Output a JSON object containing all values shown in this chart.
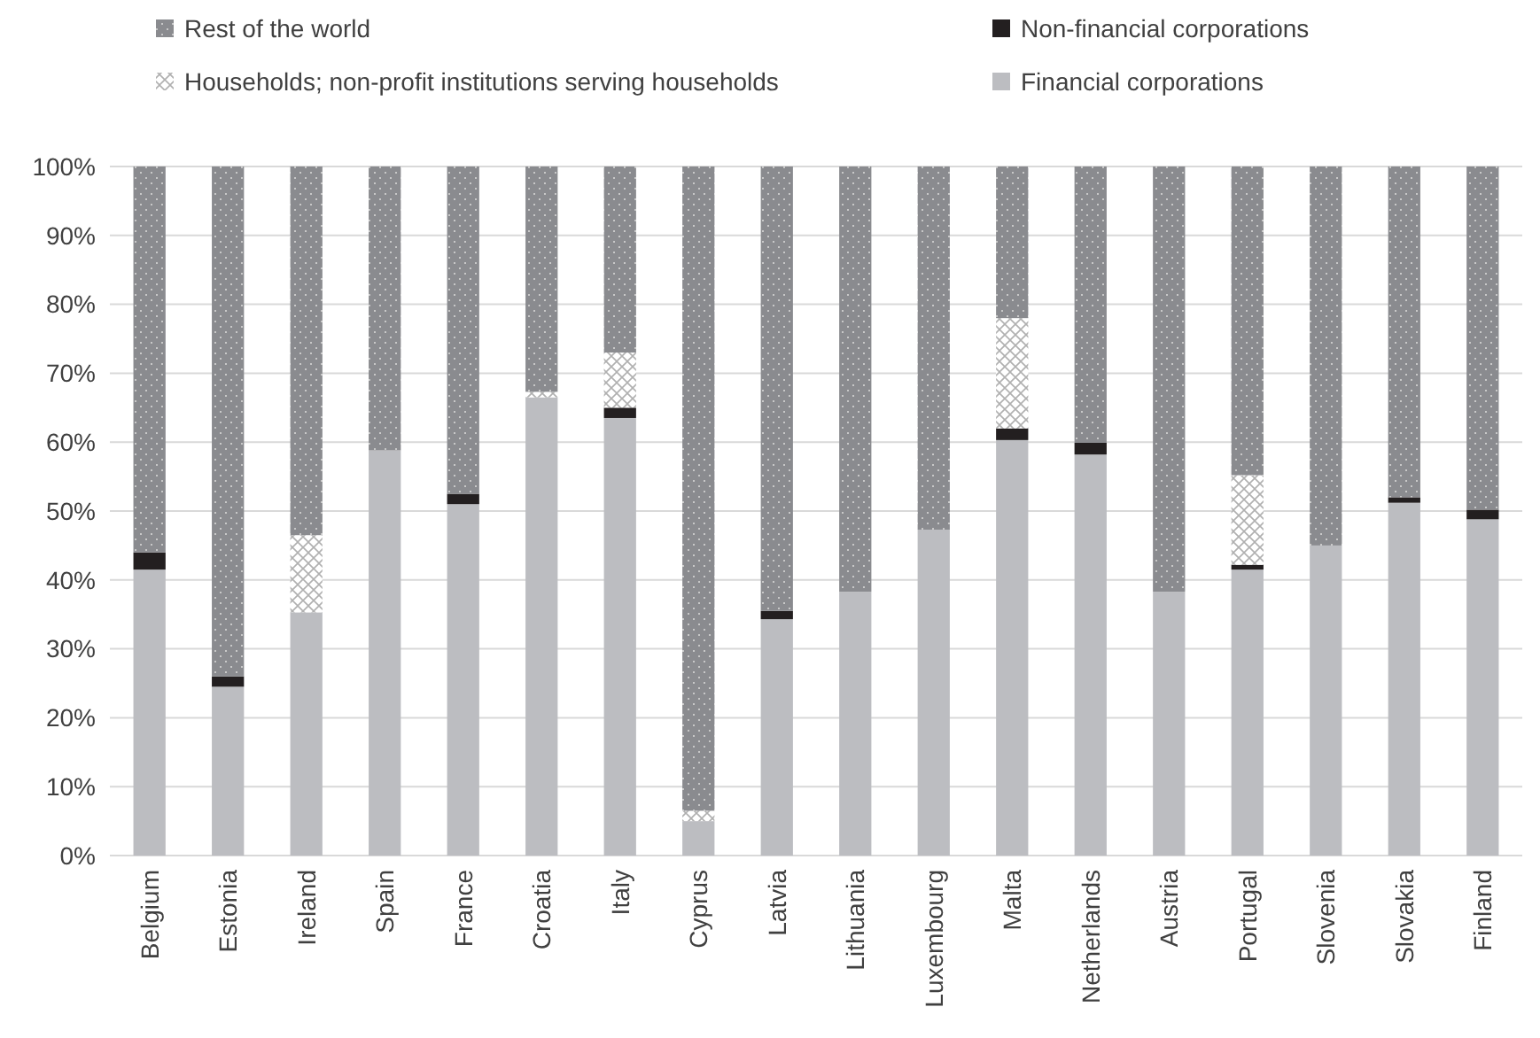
{
  "chart_data": {
    "type": "bar",
    "stacked": true,
    "legend": "top",
    "grid": "y",
    "categories": [
      "Belgium",
      "Estonia",
      "Ireland",
      "Spain",
      "France",
      "Croatia",
      "Italy",
      "Cyprus",
      "Latvia",
      "Lithuania",
      "Luxembourg",
      "Malta",
      "Netherlands",
      "Austria",
      "Portugal",
      "Slovenia",
      "Slovakia",
      "Finland"
    ],
    "series": [
      {
        "name": "Financial corporations",
        "color": "#bcbdc1",
        "values": [
          41.5,
          24.5,
          35.3,
          58.8,
          51,
          66.5,
          63.5,
          5,
          34.3,
          38.3,
          47.3,
          60.3,
          58.2,
          38.3,
          41.5,
          45,
          51.2,
          48.8
        ]
      },
      {
        "name": "Non-financial corporations",
        "color": "#231f20",
        "values": [
          2.5,
          1.5,
          0,
          0,
          1.5,
          0,
          1.5,
          0,
          1.2,
          0,
          0,
          1.7,
          1.7,
          0,
          0.7,
          0,
          0.8,
          1.4
        ]
      },
      {
        "name": "Households; non-profit institutions serving households",
        "color": "#b0b0b0",
        "values": [
          0,
          0,
          11.2,
          0,
          0,
          0.8,
          8,
          1.5,
          0,
          0,
          0,
          16,
          0,
          0,
          13,
          0,
          0,
          0
        ]
      },
      {
        "name": "Rest of the world",
        "color": "#8a8b8f",
        "values": [
          56,
          74,
          53.5,
          41.2,
          47.5,
          32.7,
          27,
          93.5,
          64.5,
          61.7,
          52.7,
          22,
          40.1,
          61.7,
          44.8,
          55,
          48,
          49.8
        ]
      }
    ],
    "ylim": [
      0,
      100
    ],
    "yticks": [
      {
        "value": 0,
        "label": "0%"
      },
      {
        "value": 10,
        "label": "10%"
      },
      {
        "value": 20,
        "label": "20%"
      },
      {
        "value": 30,
        "label": "30%"
      },
      {
        "value": 40,
        "label": "40%"
      },
      {
        "value": 50,
        "label": "50%"
      },
      {
        "value": 60,
        "label": "60%"
      },
      {
        "value": 70,
        "label": "70%"
      },
      {
        "value": 80,
        "label": "80%"
      },
      {
        "value": 90,
        "label": "90%"
      },
      {
        "value": 100,
        "label": "100%"
      }
    ]
  }
}
